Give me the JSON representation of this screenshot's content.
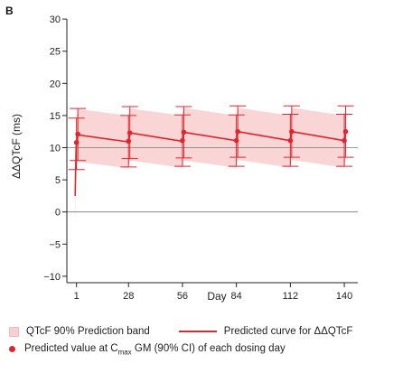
{
  "panel_label": "B",
  "colors": {
    "band": "#f9d0d2",
    "curve": "#e0262d",
    "point": "#e0262d",
    "ci": "#e0262d",
    "reference_line": "#777777",
    "axis": "#222222"
  },
  "legend": {
    "band": "QTcF 90% Prediction band",
    "curve": "Predicted curve for ΔΔQTcF",
    "point_prefix": "Predicted value at C",
    "point_sub": "max",
    "point_suffix": " GM (90% CI) of each dosing day"
  },
  "chart_data": {
    "type": "line",
    "title": "",
    "xlabel": "Day",
    "ylabel": "ΔΔQTcF (ms)",
    "xlim": [
      -4,
      147
    ],
    "ylim": [
      -11,
      31
    ],
    "x_ticks": [
      1,
      28,
      56,
      84,
      112,
      140
    ],
    "y_ticks": [
      -10,
      -5,
      0,
      5,
      10,
      15,
      20,
      25,
      30
    ],
    "y_tick_labels": [
      "−10",
      "−5",
      "0",
      "5",
      "10",
      "15",
      "20",
      "25",
      "30"
    ],
    "reference_lines_y": [
      0,
      10
    ],
    "grid": false,
    "legend_position": "bottom",
    "series": [
      {
        "name": "Predicted curve for ΔΔQTcF",
        "x": [
          0.3,
          0.8,
          1,
          1.7,
          27.9,
          28,
          28.7,
          55.9,
          56,
          56.7,
          83.9,
          84,
          84.7,
          111.9,
          112,
          112.7,
          139.9,
          140,
          140.7
        ],
        "y": [
          2.5,
          10.0,
          10.9,
          12.0,
          10.9,
          11.2,
          12.3,
          11.0,
          11.3,
          12.4,
          11.1,
          11.4,
          12.5,
          11.1,
          11.4,
          12.5,
          11.1,
          11.4,
          12.5
        ]
      }
    ],
    "band": {
      "name": "QTcF 90% Prediction band",
      "x": [
        0.3,
        0.8,
        1,
        1.7,
        27.9,
        28,
        28.7,
        55.9,
        56,
        56.7,
        83.9,
        84,
        84.7,
        111.9,
        112,
        112.7,
        139.9,
        140,
        140.7
      ],
      "lower": [
        -2.0,
        6.5,
        7.0,
        7.8,
        6.8,
        7.2,
        8.0,
        6.9,
        7.2,
        8.0,
        6.9,
        7.2,
        8.1,
        6.9,
        7.2,
        8.1,
        6.9,
        7.2,
        8.1
      ],
      "upper": [
        5.5,
        14.3,
        14.8,
        16.0,
        15.0,
        15.2,
        16.1,
        15.0,
        15.3,
        16.2,
        15.0,
        15.3,
        16.2,
        15.0,
        15.3,
        16.2,
        15.0,
        15.3,
        16.2
      ]
    },
    "points": [
      {
        "x": 1,
        "y": 10.8,
        "low": 6.6,
        "high": 14.6
      },
      {
        "x": 1.7,
        "y": 12.1,
        "low": 8.0,
        "high": 16.1
      },
      {
        "x": 28,
        "y": 11.0,
        "low": 7.0,
        "high": 15.0
      },
      {
        "x": 28.7,
        "y": 12.3,
        "low": 8.3,
        "high": 16.4
      },
      {
        "x": 56,
        "y": 11.1,
        "low": 7.1,
        "high": 15.1
      },
      {
        "x": 56.7,
        "y": 12.4,
        "low": 8.4,
        "high": 16.4
      },
      {
        "x": 84,
        "y": 11.1,
        "low": 7.1,
        "high": 15.1
      },
      {
        "x": 84.7,
        "y": 12.5,
        "low": 8.5,
        "high": 16.5
      },
      {
        "x": 112,
        "y": 11.1,
        "low": 7.1,
        "high": 15.2
      },
      {
        "x": 112.7,
        "y": 12.5,
        "low": 8.5,
        "high": 16.5
      },
      {
        "x": 140,
        "y": 11.1,
        "low": 7.1,
        "high": 15.2
      },
      {
        "x": 140.7,
        "y": 12.5,
        "low": 8.5,
        "high": 16.5
      }
    ]
  }
}
